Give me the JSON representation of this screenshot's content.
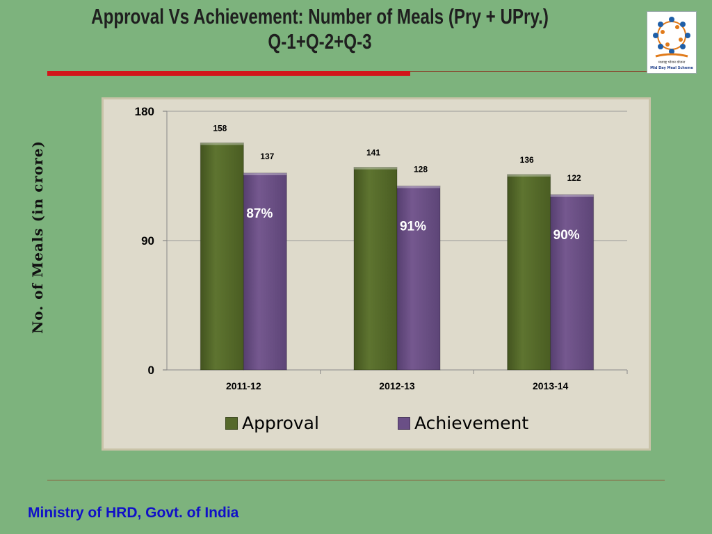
{
  "slide": {
    "title_line1": "Approval Vs Achievement:  Number of Meals (Pry + UPry.)",
    "title_line2": "Q-1+Q-2+Q-3",
    "footer": "Ministry of HRD, Govt. of India",
    "logo_text1": "मध्याह्न भोजन योजना",
    "logo_text2": "Mid Day Meal Scheme",
    "logo_icon": "mid-day-meal-logo"
  },
  "chart_data": {
    "type": "bar",
    "title": "",
    "xlabel": "",
    "ylabel": "No. of Meals (in crore)",
    "ylim": [
      0,
      180
    ],
    "yticks": [
      0,
      90,
      180
    ],
    "categories": [
      "2011-12",
      "2012-13",
      "2013-14"
    ],
    "series": [
      {
        "name": "Approval",
        "values": [
          158,
          141,
          136
        ],
        "color": "#56692b"
      },
      {
        "name": "Achievement",
        "values": [
          137,
          128,
          122
        ],
        "color": "#6a4f86"
      }
    ],
    "percent_labels": [
      "87%",
      "91%",
      "90%"
    ],
    "grid": true,
    "legend_position": "bottom"
  }
}
